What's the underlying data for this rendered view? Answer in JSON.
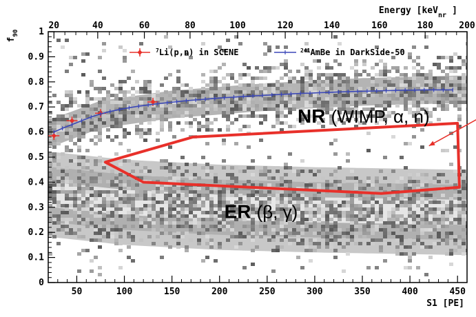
{
  "chart_data": {
    "type": "scatter",
    "title": "",
    "xlabel": "S1 [PE]",
    "ylabel": "f90",
    "top_axis_label": "Energy [keVnr]",
    "top_axis_label_main": "Energy [keV",
    "top_axis_label_sub": "nr",
    "top_axis_label_close": "]",
    "ylabel_main": "f",
    "ylabel_sub": "90",
    "xlim": [
      20,
      460
    ],
    "ylim": [
      0,
      1
    ],
    "x_ticks": [
      50,
      100,
      150,
      200,
      250,
      300,
      350,
      400,
      450
    ],
    "y_ticks": [
      0,
      0.1,
      0.2,
      0.3,
      0.4,
      0.5,
      0.6,
      0.7,
      0.8,
      0.9,
      1
    ],
    "y_tick_labels": [
      "0",
      "0.1",
      "0.2",
      "0.3",
      "0.4",
      "0.5",
      "0.6",
      "0.7",
      "0.8",
      "0.9",
      "1"
    ],
    "top_axis": {
      "ticks_energy": [
        20,
        40,
        60,
        80,
        100,
        120,
        140,
        160,
        180,
        200
      ],
      "ticks_s1": [
        26,
        72,
        121,
        169,
        219,
        269,
        318,
        368,
        416,
        460
      ]
    },
    "grid": false,
    "legend_position": "top-right",
    "series": [
      {
        "name": "7Li(p,n) in SCENE",
        "legend_sup": "7",
        "legend_main": "Li(p,n) in SCENE",
        "color": "#e8302a",
        "marker": "diamond",
        "x": [
          26,
          45,
          75,
          130
        ],
        "y": [
          0.585,
          0.645,
          0.675,
          0.72
        ]
      },
      {
        "name": "241AmBe in DarkSide-50",
        "legend_sup": "241",
        "legend_main": "AmBe in DarkSide-50",
        "color": "#3a47b8",
        "marker": "cross",
        "x": [
          26,
          35,
          45,
          55,
          65,
          75,
          85,
          95,
          105,
          115,
          125,
          135,
          145,
          155,
          165,
          175,
          185,
          195,
          205,
          215,
          225,
          235,
          245,
          255,
          265,
          275,
          285,
          295,
          305,
          315,
          325,
          335,
          345,
          355,
          365,
          375,
          385,
          395,
          405,
          415,
          425,
          435,
          445
        ],
        "y": [
          0.6,
          0.615,
          0.63,
          0.645,
          0.66,
          0.672,
          0.682,
          0.69,
          0.697,
          0.703,
          0.708,
          0.713,
          0.717,
          0.721,
          0.725,
          0.728,
          0.731,
          0.734,
          0.737,
          0.739,
          0.742,
          0.744,
          0.746,
          0.748,
          0.75,
          0.752,
          0.754,
          0.755,
          0.757,
          0.758,
          0.76,
          0.761,
          0.762,
          0.763,
          0.764,
          0.765,
          0.766,
          0.767,
          0.767,
          0.768,
          0.768,
          0.768,
          0.768
        ]
      }
    ],
    "bands": {
      "nr_center": [
        [
          26,
          0.6
        ],
        [
          75,
          0.67
        ],
        [
          150,
          0.71
        ],
        [
          250,
          0.74
        ],
        [
          350,
          0.76
        ],
        [
          450,
          0.77
        ]
      ],
      "er_center": [
        [
          26,
          0.35
        ],
        [
          100,
          0.32
        ],
        [
          200,
          0.3
        ],
        [
          300,
          0.29
        ],
        [
          450,
          0.28
        ]
      ]
    },
    "acceptance_region": {
      "color": "#e8302a",
      "polygon": [
        [
          80,
          0.48
        ],
        [
          172,
          0.58
        ],
        [
          450,
          0.635
        ],
        [
          452,
          0.38
        ],
        [
          370,
          0.355
        ],
        [
          120,
          0.4
        ]
      ]
    },
    "annotations": [
      {
        "text": "NR",
        "rest": "(WIMP, α, n)",
        "x": 282,
        "y": 0.665
      },
      {
        "text": "ER",
        "rest": "(β, γ)",
        "x": 205,
        "y": 0.285
      }
    ],
    "arrow": {
      "color": "#e8302a",
      "from": [
        470,
        0.65
      ],
      "to": [
        420,
        0.545
      ]
    }
  }
}
